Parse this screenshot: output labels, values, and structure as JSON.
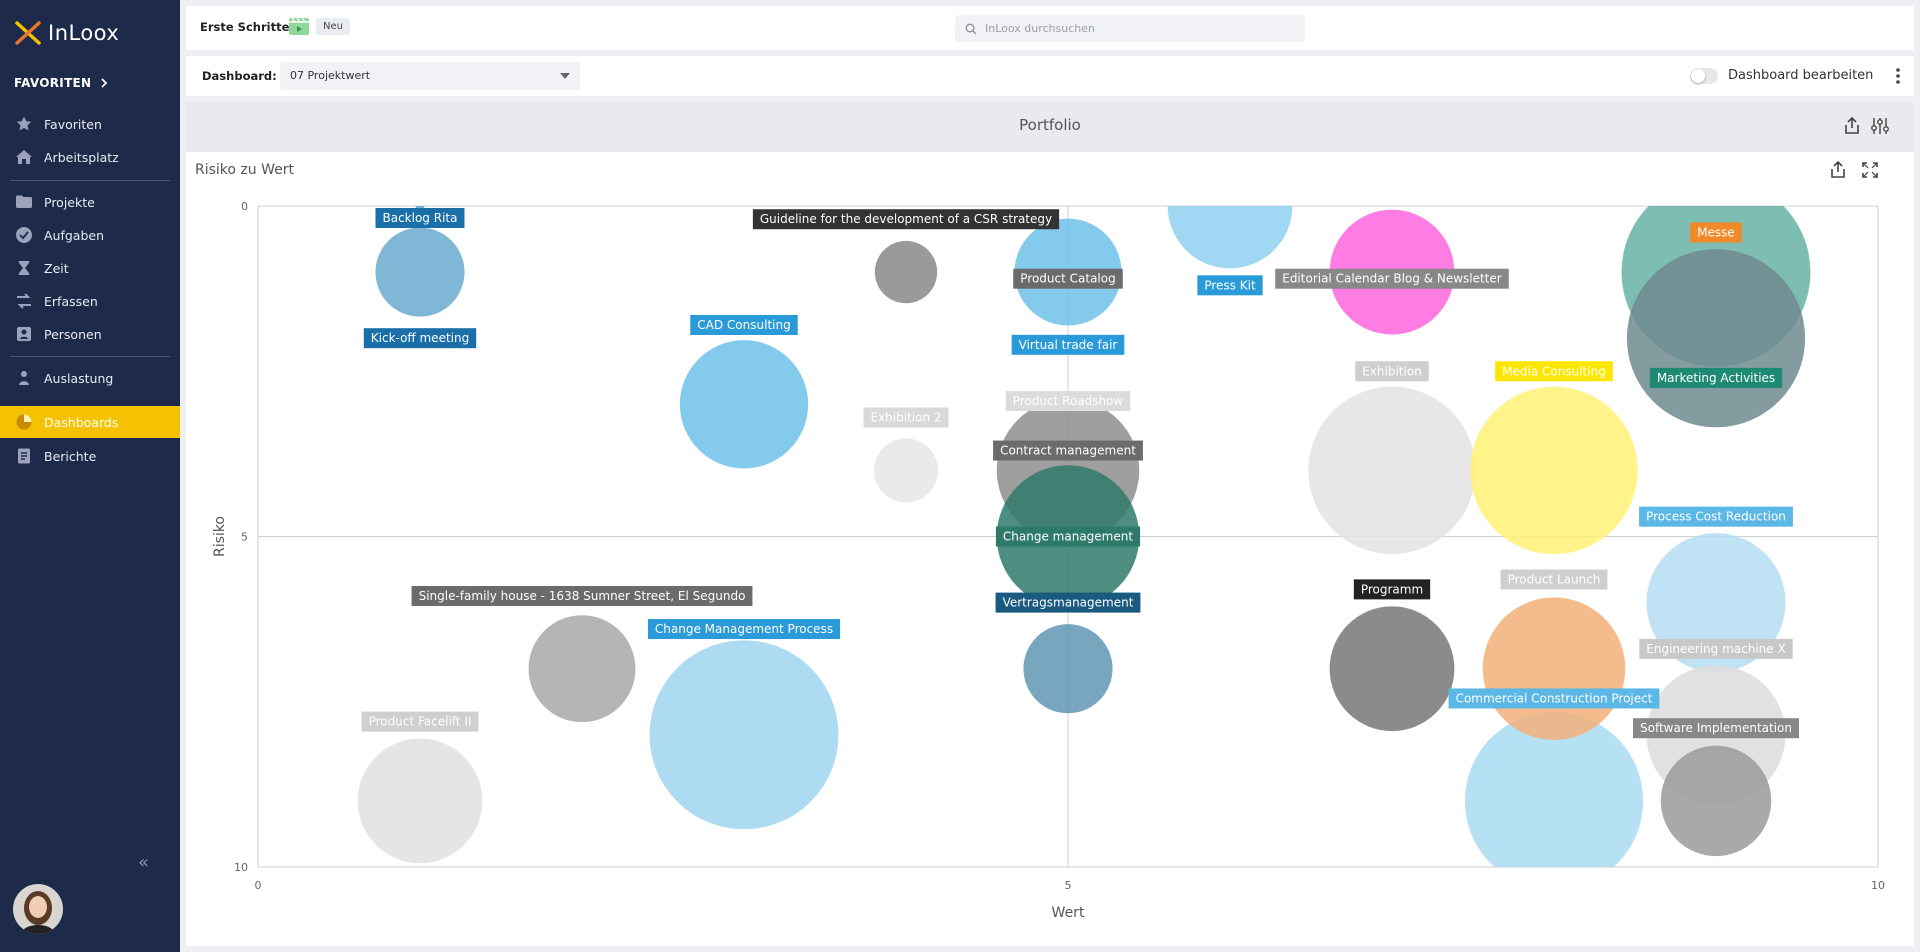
{
  "app": {
    "logo": "InLoox",
    "favorites_header": "FAVORITEN",
    "collapse_label": "«"
  },
  "sidebar": {
    "items": [
      {
        "label": "Favoriten",
        "icon": "star-icon"
      },
      {
        "label": "Arbeitsplatz",
        "icon": "home-icon"
      },
      {
        "label": "Projekte",
        "icon": "folder-icon"
      },
      {
        "label": "Aufgaben",
        "icon": "check-circle-icon"
      },
      {
        "label": "Zeit",
        "icon": "hourglass-icon"
      },
      {
        "label": "Erfassen",
        "icon": "swap-icon"
      },
      {
        "label": "Personen",
        "icon": "person-card-icon"
      },
      {
        "label": "Auslastung",
        "icon": "workload-icon"
      },
      {
        "label": "Dashboards",
        "icon": "pie-icon"
      },
      {
        "label": "Berichte",
        "icon": "report-icon"
      }
    ]
  },
  "topbar": {
    "first_steps": "Erste Schritte:",
    "badge_new": "Neu",
    "search_placeholder": "InLoox durchsuchen"
  },
  "dashbar": {
    "label": "Dashboard:",
    "selected": "07 Projektwert",
    "toggle_label": "Dashboard bearbeiten",
    "toggle_on": false
  },
  "portfolio": {
    "title": "Portfolio"
  },
  "chart_panel": {
    "title": "Risiko zu Wert"
  },
  "colors": {
    "sidebar_bg": "#1e2a4a",
    "accent": "#f5c200"
  },
  "chart_data": {
    "type": "bubble",
    "xlabel": "Wert",
    "ylabel": "Risiko",
    "xlim": [
      0,
      10
    ],
    "ylim": [
      0,
      10
    ],
    "y_inverted": true,
    "x_ticks": [
      "0",
      "5",
      "10"
    ],
    "y_ticks": [
      "0",
      "5",
      "10"
    ],
    "grid": "center lines",
    "points": [
      {
        "name": "Backlog Rita",
        "x": 1,
        "y": 0,
        "size": 0.05,
        "color": "#5aa8d6",
        "label_color": "#1a6fa8",
        "label_dy": -0.4
      },
      {
        "name": "Kick-off meeting",
        "x": 1,
        "y": 1,
        "size": 0.5,
        "color": "#6aaad0",
        "label_color": "#1a6fa8",
        "label_dy": 1.0
      },
      {
        "name": "CAD Consulting",
        "x": 3,
        "y": 3,
        "size": 0.72,
        "color": "#6ec1ea",
        "label_color": "#2a9ad8",
        "label_dy": -1.2
      },
      {
        "name": "Guideline for the development of a CSR strategy",
        "x": 4,
        "y": 1,
        "size": 0.35,
        "color": "#888888",
        "label_color": "#333333",
        "label_dy": -0.8
      },
      {
        "name": "Exhibition 2",
        "x": 4,
        "y": 4,
        "size": 0.36,
        "color": "#e6e6e6",
        "label_color": "#d9d9d9",
        "label_dy": -0.8
      },
      {
        "name": "Product Catalog",
        "x": 5,
        "y": 1,
        "size": 0.6,
        "color": "#6ec1ea",
        "label_color": "#6b6b6b",
        "label_dy": 0.1
      },
      {
        "name": "Virtual trade fair",
        "x": 5,
        "y": 2,
        "size": 0.01,
        "color": "#2a9ad8",
        "label_color": "#2a9ad8",
        "label_dy": 0.1
      },
      {
        "name": "Product Roadshow",
        "x": 5,
        "y": 3,
        "size": 0.01,
        "color": "#e0e0e0",
        "label_color": "#dcdcdc",
        "label_dy": -0.05
      },
      {
        "name": "Contract management",
        "x": 5,
        "y": 4,
        "size": 0.8,
        "color": "#8e8e8e",
        "label_color": "#6b6b6b",
        "label_dy": -0.3
      },
      {
        "name": "Change management",
        "x": 5,
        "y": 5,
        "size": 0.8,
        "color": "#2e7a6a",
        "label_color": "#2e7a6a",
        "label_dy": 0
      },
      {
        "name": "Vertragsmanagement",
        "x": 5,
        "y": 7,
        "size": 0.5,
        "color": "#5f97b3",
        "label_color": "#1a5a80",
        "label_dy": -1.0
      },
      {
        "name": "Press Kit",
        "x": 6,
        "y": 0,
        "size": 0.7,
        "color": "#8fd0f0",
        "label_color": "#2a9ad8",
        "label_dy": 1.2
      },
      {
        "name": "Editorial Calendar Blog & Newsletter",
        "x": 7,
        "y": 1,
        "size": 0.7,
        "color": "#ff66dd",
        "label_color": "#888888",
        "label_dy": 0.1
      },
      {
        "name": "Exhibition",
        "x": 7,
        "y": 4,
        "size": 0.94,
        "color": "#e3e3e3",
        "label_color": "#cfcfcf",
        "label_dy": -1.5
      },
      {
        "name": "Programm",
        "x": 7,
        "y": 7,
        "size": 0.7,
        "color": "#777777",
        "label_color": "#222222",
        "label_dy": -1.2
      },
      {
        "name": "Media Consulting",
        "x": 8,
        "y": 4,
        "size": 0.94,
        "color": "#fff176",
        "label_color": "#ffe600",
        "label_dy": -1.5
      },
      {
        "name": "Product Launch",
        "x": 8,
        "y": 7,
        "size": 0.8,
        "color": "#f2b079",
        "label_color": "#cfcfcf",
        "label_dy": -1.35
      },
      {
        "name": "Commercial Construction Project",
        "x": 8,
        "y": 9,
        "size": 1.0,
        "color": "#a9daf2",
        "label_color": "#5ab7e6",
        "label_dy": -1.55
      },
      {
        "name": "Messe",
        "x": 9,
        "y": 1,
        "size": 1.06,
        "color": "#67b3a4",
        "label_color": "#f08a28",
        "label_dy": -0.6
      },
      {
        "name": "Marketing Activities",
        "x": 9,
        "y": 2,
        "size": 1.0,
        "color": "#6e8a8e",
        "label_color": "#1e8a74",
        "label_dy": 0.6
      },
      {
        "name": "Process Cost Reduction",
        "x": 9,
        "y": 6,
        "size": 0.78,
        "color": "#b5ddf3",
        "label_color": "#5ab7e6",
        "label_dy": -1.3
      },
      {
        "name": "Engineering machine X",
        "x": 9,
        "y": 8,
        "size": 0.78,
        "color": "#dcdcdc",
        "label_color": "#c8c8c8",
        "label_dy": -1.3
      },
      {
        "name": "Software Implementation",
        "x": 9,
        "y": 9,
        "size": 0.62,
        "color": "#9a9a9a",
        "label_color": "#888888",
        "label_dy": -1.1
      },
      {
        "name": "Single-family house - 1638  Sumner Street, El Segundo",
        "x": 2,
        "y": 7,
        "size": 0.6,
        "color": "#a8a8a8",
        "label_color": "#6b6b6b",
        "label_dy": -1.1
      },
      {
        "name": "Change Management Process",
        "x": 3,
        "y": 8,
        "size": 1.06,
        "color": "#9fd6f0",
        "label_color": "#2a9ad8",
        "label_dy": -1.6
      },
      {
        "name": "Product Facelift II",
        "x": 1,
        "y": 9,
        "size": 0.7,
        "color": "#e0e0e0",
        "label_color": "#cfcfcf",
        "label_dy": -1.2
      }
    ]
  }
}
